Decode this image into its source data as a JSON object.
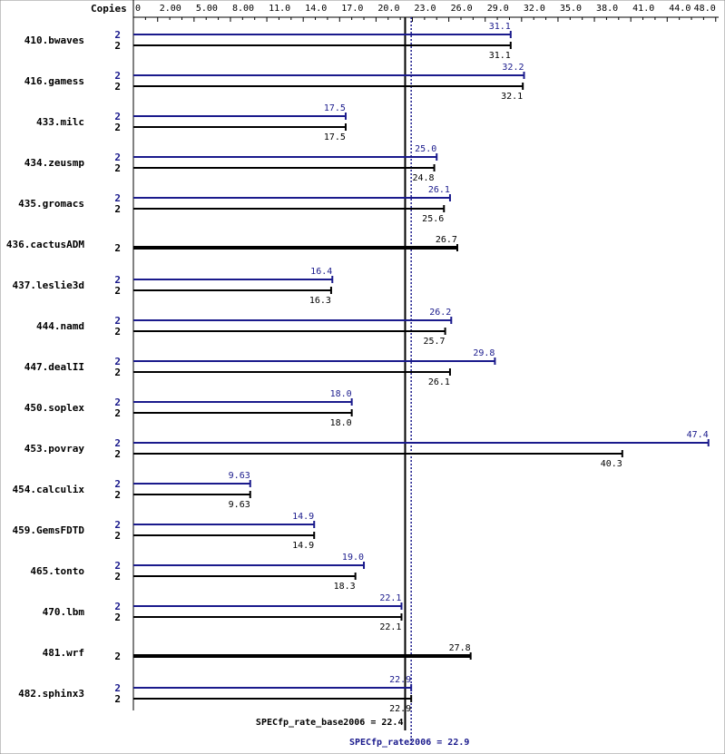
{
  "chart_data": {
    "type": "bar",
    "orientation": "horizontal",
    "copies_header": "Copies",
    "x_range": [
      0,
      48.0
    ],
    "x_ticks": [
      "0",
      "2.00",
      "5.00",
      "8.00",
      "11.0",
      "14.0",
      "17.0",
      "20.0",
      "23.0",
      "26.0",
      "29.0",
      "32.0",
      "35.0",
      "38.0",
      "41.0",
      "44.0",
      "48.0"
    ],
    "x_tick_values": [
      0,
      2,
      5,
      8,
      11,
      14,
      17,
      20,
      23,
      26,
      29,
      32,
      35,
      38,
      41,
      44,
      48
    ],
    "colors": {
      "peak": "#1a1a8c",
      "base": "#000000"
    },
    "benchmarks": [
      {
        "name": "410.bwaves",
        "peak": {
          "copies": "2",
          "value": 31.1,
          "label": "31.1"
        },
        "base": {
          "copies": "2",
          "value": 31.1,
          "label": "31.1"
        }
      },
      {
        "name": "416.gamess",
        "peak": {
          "copies": "2",
          "value": 32.2,
          "label": "32.2"
        },
        "base": {
          "copies": "2",
          "value": 32.1,
          "label": "32.1"
        }
      },
      {
        "name": "433.milc",
        "peak": {
          "copies": "2",
          "value": 17.5,
          "label": "17.5"
        },
        "base": {
          "copies": "2",
          "value": 17.5,
          "label": "17.5"
        }
      },
      {
        "name": "434.zeusmp",
        "peak": {
          "copies": "2",
          "value": 25.0,
          "label": "25.0"
        },
        "base": {
          "copies": "2",
          "value": 24.8,
          "label": "24.8"
        }
      },
      {
        "name": "435.gromacs",
        "peak": {
          "copies": "2",
          "value": 26.1,
          "label": "26.1"
        },
        "base": {
          "copies": "2",
          "value": 25.6,
          "label": "25.6"
        }
      },
      {
        "name": "436.cactusADM",
        "combined": {
          "copies": "2",
          "value": 26.7,
          "label": "26.7"
        }
      },
      {
        "name": "437.leslie3d",
        "peak": {
          "copies": "2",
          "value": 16.4,
          "label": "16.4"
        },
        "base": {
          "copies": "2",
          "value": 16.3,
          "label": "16.3"
        }
      },
      {
        "name": "444.namd",
        "peak": {
          "copies": "2",
          "value": 26.2,
          "label": "26.2"
        },
        "base": {
          "copies": "2",
          "value": 25.7,
          "label": "25.7"
        }
      },
      {
        "name": "447.dealII",
        "peak": {
          "copies": "2",
          "value": 29.8,
          "label": "29.8"
        },
        "base": {
          "copies": "2",
          "value": 26.1,
          "label": "26.1"
        }
      },
      {
        "name": "450.soplex",
        "peak": {
          "copies": "2",
          "value": 18.0,
          "label": "18.0"
        },
        "base": {
          "copies": "2",
          "value": 18.0,
          "label": "18.0"
        }
      },
      {
        "name": "453.povray",
        "peak": {
          "copies": "2",
          "value": 47.4,
          "label": "47.4"
        },
        "base": {
          "copies": "2",
          "value": 40.3,
          "label": "40.3"
        }
      },
      {
        "name": "454.calculix",
        "peak": {
          "copies": "2",
          "value": 9.63,
          "label": "9.63"
        },
        "base": {
          "copies": "2",
          "value": 9.63,
          "label": "9.63"
        }
      },
      {
        "name": "459.GemsFDTD",
        "peak": {
          "copies": "2",
          "value": 14.9,
          "label": "14.9"
        },
        "base": {
          "copies": "2",
          "value": 14.9,
          "label": "14.9"
        }
      },
      {
        "name": "465.tonto",
        "peak": {
          "copies": "2",
          "value": 19.0,
          "label": "19.0"
        },
        "base": {
          "copies": "2",
          "value": 18.3,
          "label": "18.3"
        }
      },
      {
        "name": "470.lbm",
        "peak": {
          "copies": "2",
          "value": 22.1,
          "label": "22.1"
        },
        "base": {
          "copies": "2",
          "value": 22.1,
          "label": "22.1"
        }
      },
      {
        "name": "481.wrf",
        "combined": {
          "copies": "2",
          "value": 27.8,
          "label": "27.8"
        }
      },
      {
        "name": "482.sphinx3",
        "peak": {
          "copies": "2",
          "value": 22.9,
          "label": "22.9"
        },
        "base": {
          "copies": "2",
          "value": 22.9,
          "label": "22.9"
        }
      }
    ],
    "base_reference": {
      "value": 22.4,
      "label": "SPECfp_rate_base2006 = 22.4"
    },
    "peak_reference": {
      "value": 22.9,
      "label": "SPECfp_rate2006 = 22.9"
    }
  }
}
